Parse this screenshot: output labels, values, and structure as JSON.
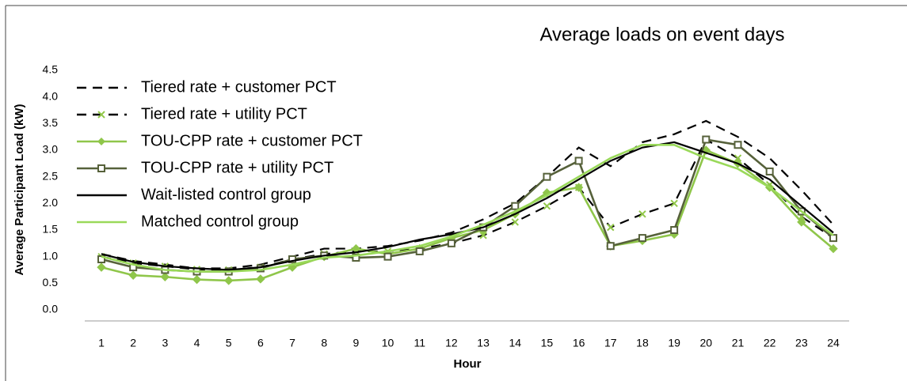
{
  "chart_data": {
    "type": "line",
    "title": "Average loads on event days",
    "x_label": "Hour",
    "y_label": "Average Participant Load (kW)",
    "categories": [
      1,
      2,
      3,
      4,
      5,
      6,
      7,
      8,
      9,
      10,
      11,
      12,
      13,
      14,
      15,
      16,
      17,
      18,
      19,
      20,
      21,
      22,
      23,
      24
    ],
    "ylim": [
      0,
      4.5
    ],
    "yticks": [
      {
        "value": 0,
        "label": "0.0"
      },
      0.5,
      {
        "value": 1,
        "label": "1.0"
      },
      1.5,
      {
        "value": 2,
        "label": "2.0"
      },
      2.5,
      {
        "value": 3,
        "label": "3.0"
      },
      3.5,
      {
        "value": 4,
        "label": "4.0"
      },
      4.5
    ],
    "legend": "upper-left",
    "series": [
      {
        "name": "Tiered rate + customer PCT",
        "color": "#000000",
        "dash": true,
        "marker": "none",
        "values": [
          1.05,
          0.92,
          0.85,
          0.78,
          0.78,
          0.85,
          1.0,
          1.15,
          1.15,
          1.2,
          1.3,
          1.45,
          1.7,
          2.0,
          2.5,
          3.05,
          2.7,
          3.15,
          3.3,
          3.55,
          3.25,
          2.85,
          2.25,
          1.6
        ]
      },
      {
        "name": "Tiered rate + utility PCT",
        "color": "#000000",
        "marker_color": "#92c84a",
        "dash": true,
        "marker": "x",
        "values": [
          1.0,
          0.88,
          0.82,
          0.76,
          0.75,
          0.8,
          0.95,
          1.05,
          1.1,
          1.1,
          1.15,
          1.25,
          1.4,
          1.65,
          1.95,
          2.3,
          1.55,
          1.8,
          2.0,
          3.2,
          2.85,
          2.35,
          1.75,
          1.35
        ]
      },
      {
        "name": "TOU-CPP rate + customer PCT",
        "color": "#8fc64a",
        "dash": false,
        "marker": "diamond",
        "values": [
          0.8,
          0.65,
          0.62,
          0.57,
          0.55,
          0.58,
          0.8,
          1.0,
          1.15,
          1.05,
          1.15,
          1.35,
          1.5,
          1.8,
          2.2,
          2.3,
          1.2,
          1.3,
          1.42,
          3.0,
          2.75,
          2.3,
          1.65,
          1.15
        ]
      },
      {
        "name": "TOU-CPP rate + utility PCT",
        "color": "#56613a",
        "dash": false,
        "marker": "square",
        "values": [
          0.95,
          0.8,
          0.75,
          0.72,
          0.72,
          0.78,
          0.95,
          1.02,
          0.98,
          1.0,
          1.1,
          1.25,
          1.55,
          1.95,
          2.5,
          2.8,
          1.2,
          1.35,
          1.5,
          3.2,
          3.1,
          2.6,
          1.85,
          1.35
        ]
      },
      {
        "name": "Wait-listed control group",
        "color": "#000000",
        "dash": false,
        "marker": "none",
        "values": [
          1.05,
          0.9,
          0.82,
          0.78,
          0.75,
          0.8,
          0.92,
          1.02,
          1.08,
          1.18,
          1.32,
          1.42,
          1.55,
          1.8,
          2.1,
          2.45,
          2.8,
          3.05,
          3.15,
          2.95,
          2.75,
          2.45,
          1.95,
          1.45
        ]
      },
      {
        "name": "Matched control group",
        "color": "#9ad95a",
        "dash": false,
        "marker": "none",
        "values": [
          1.0,
          0.85,
          0.75,
          0.72,
          0.72,
          0.75,
          0.85,
          0.98,
          1.02,
          1.1,
          1.2,
          1.38,
          1.6,
          1.85,
          2.15,
          2.5,
          2.85,
          3.1,
          3.1,
          2.85,
          2.65,
          2.3,
          1.85,
          1.4
        ]
      }
    ]
  }
}
